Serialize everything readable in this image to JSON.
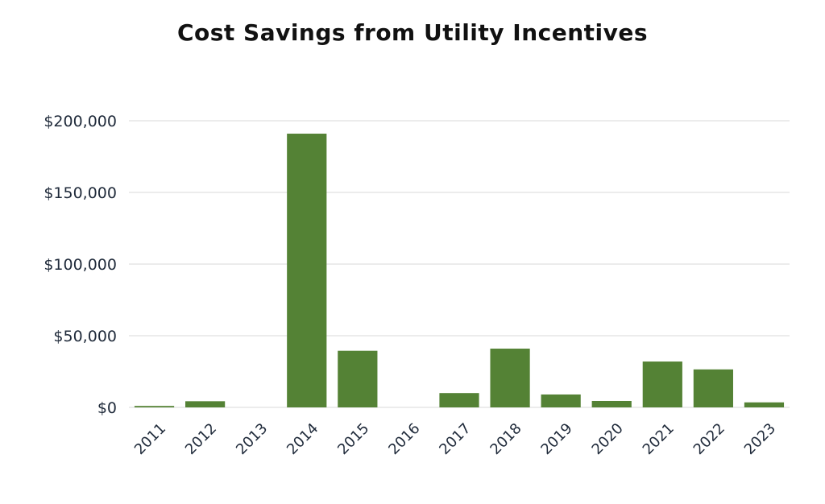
{
  "chart_data": {
    "type": "bar",
    "title": "Cost Savings from Utility Incentives",
    "xlabel": "",
    "ylabel": "",
    "categories": [
      "2011",
      "2012",
      "2013",
      "2014",
      "2015",
      "2016",
      "2017",
      "2018",
      "2019",
      "2020",
      "2021",
      "2022",
      "2023"
    ],
    "values": [
      1000,
      4300,
      0,
      191000,
      39500,
      0,
      10000,
      41000,
      9000,
      4500,
      32000,
      26500,
      3500
    ],
    "ylim": [
      0,
      200000
    ],
    "yticks": [
      0,
      50000,
      100000,
      150000,
      200000
    ],
    "ytick_labels": [
      "$0",
      "$50,000",
      "$100,000",
      "$150,000",
      "$200,000"
    ],
    "grid": true,
    "legend": "none",
    "bar_color": "#548235",
    "grid_color": "#d9d9d9"
  }
}
